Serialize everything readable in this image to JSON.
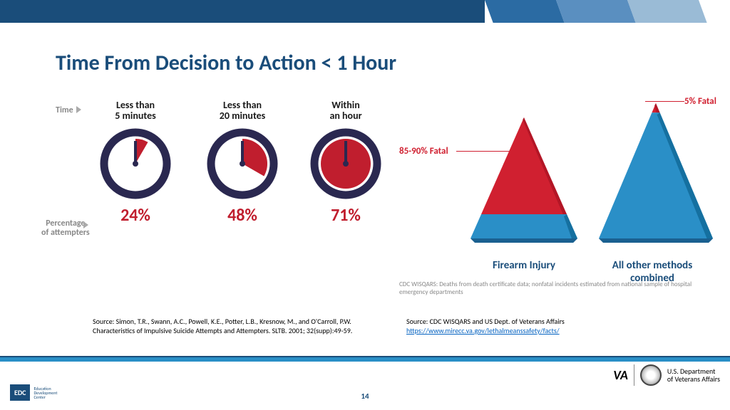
{
  "title": "Time From Decision to Action < 1 Hour",
  "left": {
    "time_label": "Time",
    "pct_label": "Percentage\nof attempters",
    "clocks": [
      {
        "top": "Less than\n5 minutes",
        "pct": "24%",
        "angle": 30
      },
      {
        "top": "Less than\n20 minutes",
        "pct": "48%",
        "angle": 120
      },
      {
        "top": "Within\nan hour",
        "pct": "71%",
        "angle": 355
      }
    ],
    "source": "Source: Simon, T.R., Swann, A.C., Powell, K.E., Potter, L.B., Kresnow, M., and O'Carroll, P.W. Characteristics of Impulsive Suicide Attempts and Attempters. SLTB. 2001; 32(supp):49-59."
  },
  "right": {
    "pyramids": [
      {
        "label": "Firearm Injury",
        "fatal": "85-90% Fatal",
        "label_color": "#1a4d7a",
        "top_color": "#d02030",
        "base_color": "#2a8fc7",
        "split": 0.8
      },
      {
        "label": "All other methods combined",
        "fatal": "5% Fatal",
        "label_color": "#1a4d7a",
        "top_color": "#d02030",
        "base_color": "#2a8fc7",
        "split": 0.07
      }
    ],
    "note": "CDC WISQARS: Deaths from death certificate data; nonfatal incidents estimated from national sample of hospital emergency departments",
    "source": "Source: CDC WISQARS and US Dept. of Veterans Affairs",
    "source_link": "https://www.mirecc.va.gov/lethalmeanssafety/facts/"
  },
  "footer": {
    "page": "14",
    "edc": {
      "box": "EDC",
      "text": "Education\nDevelopment\nCenter"
    },
    "va": {
      "va": "VA",
      "dept": "U.S. Department\nof Veterans Affairs"
    }
  },
  "colors": {
    "clock_ring": "#2a2850",
    "clock_fill": "#c01e2e",
    "pct_text": "#c01e2e"
  }
}
